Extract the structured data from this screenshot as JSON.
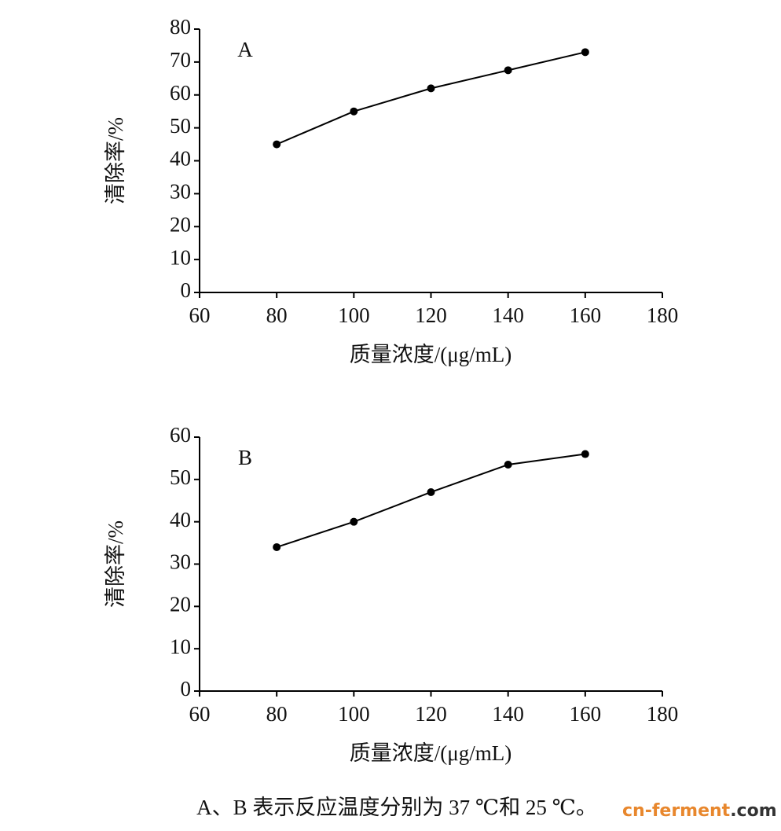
{
  "chart_data": [
    {
      "type": "line",
      "annotation": "A",
      "y_label": "清除率/%",
      "x_label": "质量浓度/(μg/mL)",
      "x": [
        80,
        100,
        120,
        140,
        160
      ],
      "values": [
        45,
        55,
        62,
        67.5,
        73
      ],
      "color": "#000000",
      "xlim": [
        60,
        180
      ],
      "xticks": [
        60,
        80,
        100,
        120,
        140,
        160,
        180
      ],
      "ylim": [
        0,
        80
      ],
      "yticks": [
        0,
        10,
        20,
        30,
        40,
        50,
        60,
        70,
        80
      ]
    },
    {
      "type": "line",
      "annotation": "B",
      "y_label": "清除率/%",
      "x_label": "质量浓度/(μg/mL)",
      "x": [
        80,
        100,
        120,
        140,
        160
      ],
      "values": [
        34,
        40,
        47,
        53.5,
        56
      ],
      "color": "#000000",
      "xlim": [
        60,
        180
      ],
      "xticks": [
        60,
        80,
        100,
        120,
        140,
        160,
        180
      ],
      "ylim": [
        0,
        60
      ],
      "yticks": [
        0,
        10,
        20,
        30,
        40,
        50,
        60
      ]
    }
  ],
  "caption": "A、B 表示反应温度分别为 37 ℃和 25 ℃。",
  "watermark": {
    "site": "cn-ferment",
    "suffix": ".com"
  }
}
